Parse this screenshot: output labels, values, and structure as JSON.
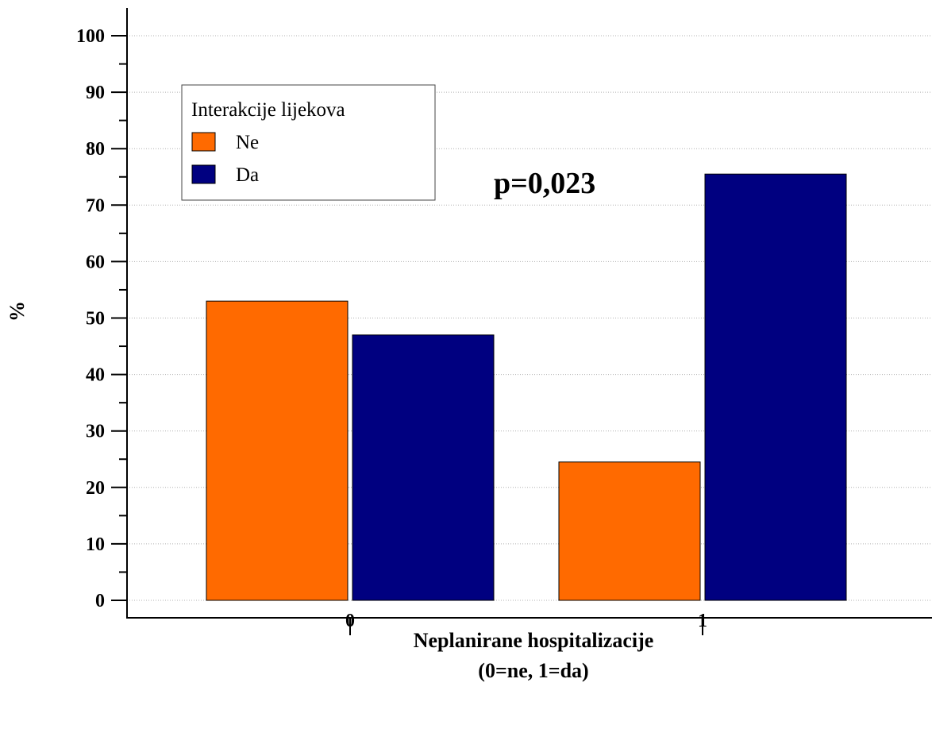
{
  "chart_data": {
    "type": "bar",
    "categories": [
      "0",
      "1"
    ],
    "series": [
      {
        "name": "Ne",
        "values": [
          53,
          24.5
        ],
        "color": "#ff6a00"
      },
      {
        "name": "Da",
        "values": [
          47,
          75.5
        ],
        "color": "#000080"
      }
    ],
    "xlabel": "Neplanirane hospitalizacije",
    "xlabel_line2": "(0=ne, 1=da)",
    "ylabel": "%",
    "ylim": [
      0,
      100
    ],
    "yticks": [
      "0",
      "10",
      "20",
      "30",
      "40",
      "50",
      "60",
      "70",
      "80",
      "90",
      "100"
    ],
    "legend_title": "Interakcije lijekova",
    "legend_placement": "top-left",
    "annotation": "p=0,023",
    "grid": "horizontal dotted"
  }
}
